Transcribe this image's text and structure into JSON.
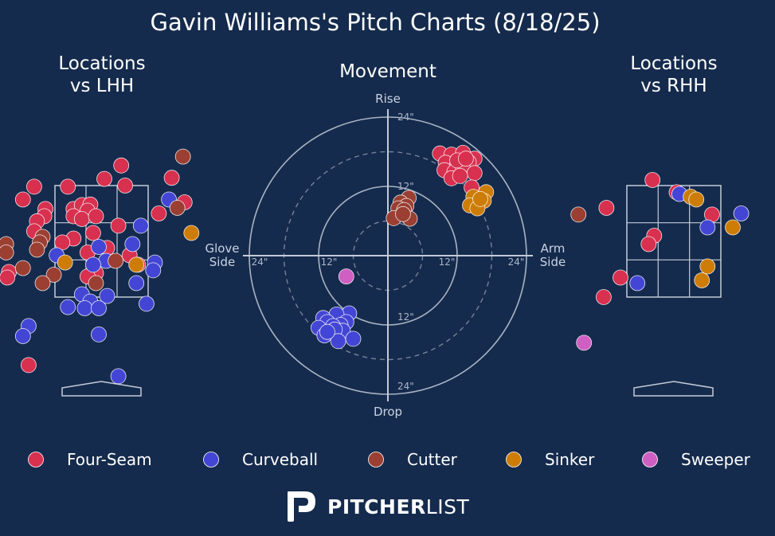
{
  "title": "Gavin Williams's Pitch Charts (8/18/25)",
  "colors": {
    "background": "#152b4d",
    "Four-Seam": "#d8304f",
    "Curveball": "#4346d4",
    "Cutter": "#9b3f33",
    "Sinker": "#cd7d06",
    "Sweeper": "#cf5fc2",
    "grid": "#c3cbd8"
  },
  "brand": {
    "name_bold": "PITCHER",
    "name_light": "LIST",
    "logo_icon": "pitcherlist-p-logo-icon"
  },
  "legend": [
    "Four-Seam",
    "Curveball",
    "Cutter",
    "Sinker",
    "Sweeper"
  ],
  "chart_data": [
    {
      "id": "lhh",
      "type": "scatter",
      "title": "Locations\nvs LHH",
      "x_unit": "plate_x_ft",
      "y_unit": "plate_z_ft",
      "strike_zone": {
        "x": [
          -0.83,
          0.83
        ],
        "z": [
          1.5,
          3.5
        ]
      },
      "points": [
        {
          "pitch": "Four-Seam",
          "x": -1.2,
          "z": 3.48
        },
        {
          "pitch": "Four-Seam",
          "x": -0.6,
          "z": 3.48
        },
        {
          "pitch": "Four-Seam",
          "x": -1.4,
          "z": 3.25
        },
        {
          "pitch": "Four-Seam",
          "x": -1.0,
          "z": 3.08
        },
        {
          "pitch": "Four-Seam",
          "x": -1.02,
          "z": 2.95
        },
        {
          "pitch": "Four-Seam",
          "x": -1.15,
          "z": 2.86
        },
        {
          "pitch": "Four-Seam",
          "x": -1.2,
          "z": 2.68
        },
        {
          "pitch": "Four-Seam",
          "x": -0.5,
          "z": 3.08
        },
        {
          "pitch": "Four-Seam",
          "x": -0.35,
          "z": 3.15
        },
        {
          "pitch": "Four-Seam",
          "x": -0.2,
          "z": 3.16
        },
        {
          "pitch": "Four-Seam",
          "x": -0.25,
          "z": 3.05
        },
        {
          "pitch": "Four-Seam",
          "x": -0.5,
          "z": 2.95
        },
        {
          "pitch": "Four-Seam",
          "x": -0.35,
          "z": 2.9
        },
        {
          "pitch": "Four-Seam",
          "x": -0.1,
          "z": 2.95
        },
        {
          "pitch": "Four-Seam",
          "x": 0.05,
          "z": 3.62
        },
        {
          "pitch": "Four-Seam",
          "x": 0.42,
          "z": 3.5
        },
        {
          "pitch": "Four-Seam",
          "x": 0.35,
          "z": 3.86
        },
        {
          "pitch": "Four-Seam",
          "x": 0.3,
          "z": 2.78
        },
        {
          "pitch": "Four-Seam",
          "x": -0.15,
          "z": 2.65
        },
        {
          "pitch": "Four-Seam",
          "x": -0.25,
          "z": 2.3
        },
        {
          "pitch": "Four-Seam",
          "x": 0.1,
          "z": 2.38
        },
        {
          "pitch": "Four-Seam",
          "x": 0.5,
          "z": 2.25
        },
        {
          "pitch": "Four-Seam",
          "x": 0.65,
          "z": 2.08
        },
        {
          "pitch": "Four-Seam",
          "x": -0.5,
          "z": 2.55
        },
        {
          "pitch": "Four-Seam",
          "x": -0.7,
          "z": 2.48
        },
        {
          "pitch": "Four-Seam",
          "x": -0.1,
          "z": 1.93
        },
        {
          "pitch": "Four-Seam",
          "x": -0.25,
          "z": 1.87
        },
        {
          "pitch": "Four-Seam",
          "x": 1.02,
          "z": 3.0
        },
        {
          "pitch": "Four-Seam",
          "x": 1.25,
          "z": 3.64
        },
        {
          "pitch": "Four-Seam",
          "x": 1.48,
          "z": 3.2
        },
        {
          "pitch": "Four-Seam",
          "x": -1.65,
          "z": 1.95
        },
        {
          "pitch": "Four-Seam",
          "x": -1.68,
          "z": 1.85
        },
        {
          "pitch": "Four-Seam",
          "x": -1.3,
          "z": 0.28
        },
        {
          "pitch": "Curveball",
          "x": -0.8,
          "z": 2.25
        },
        {
          "pitch": "Curveball",
          "x": -0.05,
          "z": 2.4
        },
        {
          "pitch": "Curveball",
          "x": 0.55,
          "z": 2.45
        },
        {
          "pitch": "Curveball",
          "x": 0.7,
          "z": 2.78
        },
        {
          "pitch": "Curveball",
          "x": 0.95,
          "z": 2.12
        },
        {
          "pitch": "Curveball",
          "x": 0.92,
          "z": 1.98
        },
        {
          "pitch": "Curveball",
          "x": 0.62,
          "z": 1.75
        },
        {
          "pitch": "Curveball",
          "x": 0.08,
          "z": 2.15
        },
        {
          "pitch": "Curveball",
          "x": -0.15,
          "z": 2.08
        },
        {
          "pitch": "Curveball",
          "x": 0.8,
          "z": 1.38
        },
        {
          "pitch": "Curveball",
          "x": 1.2,
          "z": 3.25
        },
        {
          "pitch": "Curveball",
          "x": -0.35,
          "z": 1.55
        },
        {
          "pitch": "Curveball",
          "x": -0.2,
          "z": 1.42
        },
        {
          "pitch": "Curveball",
          "x": 0.1,
          "z": 1.52
        },
        {
          "pitch": "Curveball",
          "x": -0.3,
          "z": 1.3
        },
        {
          "pitch": "Curveball",
          "x": -0.05,
          "z": 1.3
        },
        {
          "pitch": "Curveball",
          "x": -0.6,
          "z": 1.32
        },
        {
          "pitch": "Curveball",
          "x": -1.3,
          "z": 0.98
        },
        {
          "pitch": "Curveball",
          "x": -1.4,
          "z": 0.8
        },
        {
          "pitch": "Curveball",
          "x": -0.05,
          "z": 0.83
        },
        {
          "pitch": "Curveball",
          "x": 0.3,
          "z": 0.08
        },
        {
          "pitch": "Cutter",
          "x": 1.45,
          "z": 4.02
        },
        {
          "pitch": "Cutter",
          "x": 1.35,
          "z": 3.1
        },
        {
          "pitch": "Cutter",
          "x": -1.7,
          "z": 2.45
        },
        {
          "pitch": "Cutter",
          "x": -1.7,
          "z": 2.3
        },
        {
          "pitch": "Cutter",
          "x": -1.05,
          "z": 2.58
        },
        {
          "pitch": "Cutter",
          "x": -1.1,
          "z": 2.48
        },
        {
          "pitch": "Cutter",
          "x": -1.15,
          "z": 2.35
        },
        {
          "pitch": "Cutter",
          "x": 0.25,
          "z": 2.15
        },
        {
          "pitch": "Cutter",
          "x": -1.4,
          "z": 2.02
        },
        {
          "pitch": "Cutter",
          "x": -0.85,
          "z": 1.9
        },
        {
          "pitch": "Cutter",
          "x": -1.05,
          "z": 1.75
        },
        {
          "pitch": "Cutter",
          "x": -0.1,
          "z": 1.75
        },
        {
          "pitch": "Sinker",
          "x": -0.65,
          "z": 2.12
        },
        {
          "pitch": "Sinker",
          "x": 0.62,
          "z": 2.08
        },
        {
          "pitch": "Sinker",
          "x": 1.6,
          "z": 2.65
        }
      ]
    },
    {
      "id": "movement",
      "type": "scatter",
      "title": "Movement",
      "x_unit": "horizontal_break_in",
      "y_unit": "induced_vertical_break_in",
      "ring_labels": [
        "12\"",
        "24\"",
        "12\"",
        "24\"",
        "12\"",
        "24\"",
        "12\"",
        "24\""
      ],
      "top_label": "Rise",
      "bottom_label": "Drop",
      "left_label": "Glove\nSide",
      "right_label": "Arm\nSide",
      "points": [
        {
          "pitch": "Four-Seam",
          "x": 9,
          "y": 17.7
        },
        {
          "pitch": "Four-Seam",
          "x": 11,
          "y": 17.5
        },
        {
          "pitch": "Four-Seam",
          "x": 13,
          "y": 17.8
        },
        {
          "pitch": "Four-Seam",
          "x": 15,
          "y": 16.8
        },
        {
          "pitch": "Four-Seam",
          "x": 10,
          "y": 16.1
        },
        {
          "pitch": "Four-Seam",
          "x": 12,
          "y": 15.8
        },
        {
          "pitch": "Four-Seam",
          "x": 14,
          "y": 16.2
        },
        {
          "pitch": "Four-Seam",
          "x": 9.8,
          "y": 14.8
        },
        {
          "pitch": "Four-Seam",
          "x": 11.5,
          "y": 14.5
        },
        {
          "pitch": "Four-Seam",
          "x": 13,
          "y": 15
        },
        {
          "pitch": "Four-Seam",
          "x": 15,
          "y": 14.3
        },
        {
          "pitch": "Four-Seam",
          "x": 11,
          "y": 13.4
        },
        {
          "pitch": "Four-Seam",
          "x": 12.5,
          "y": 13.8
        },
        {
          "pitch": "Four-Seam",
          "x": 14.5,
          "y": 11.8
        },
        {
          "pitch": "Four-Seam",
          "x": 12,
          "y": 16.5
        },
        {
          "pitch": "Four-Seam",
          "x": 13.5,
          "y": 16.8
        },
        {
          "pitch": "Sinker",
          "x": 17,
          "y": 11
        },
        {
          "pitch": "Sinker",
          "x": 14.8,
          "y": 10.2
        },
        {
          "pitch": "Sinker",
          "x": 16.6,
          "y": 9.5
        },
        {
          "pitch": "Sinker",
          "x": 14.2,
          "y": 8.7
        },
        {
          "pitch": "Sinker",
          "x": 15.5,
          "y": 8.2
        },
        {
          "pitch": "Sinker",
          "x": 16,
          "y": 9.8
        },
        {
          "pitch": "Cutter",
          "x": 3.6,
          "y": 10
        },
        {
          "pitch": "Cutter",
          "x": 2.2,
          "y": 9.2
        },
        {
          "pitch": "Cutter",
          "x": 3.2,
          "y": 8.6
        },
        {
          "pitch": "Cutter",
          "x": 1.8,
          "y": 8.2
        },
        {
          "pitch": "Cutter",
          "x": 2.8,
          "y": 7.9
        },
        {
          "pitch": "Cutter",
          "x": 1,
          "y": 6.5
        },
        {
          "pitch": "Cutter",
          "x": 3.8,
          "y": 6.4
        },
        {
          "pitch": "Cutter",
          "x": 2.6,
          "y": 7.2
        },
        {
          "pitch": "Sweeper",
          "x": -7.2,
          "y": -3.6
        },
        {
          "pitch": "Curveball",
          "x": -6.7,
          "y": -10
        },
        {
          "pitch": "Curveball",
          "x": -8.9,
          "y": -10.2
        },
        {
          "pitch": "Curveball",
          "x": -11.2,
          "y": -10.8
        },
        {
          "pitch": "Curveball",
          "x": -10.5,
          "y": -11.5
        },
        {
          "pitch": "Curveball",
          "x": -7.2,
          "y": -11.5
        },
        {
          "pitch": "Curveball",
          "x": -8.2,
          "y": -12
        },
        {
          "pitch": "Curveball",
          "x": -9.5,
          "y": -12.2
        },
        {
          "pitch": "Curveball",
          "x": -12,
          "y": -12.5
        },
        {
          "pitch": "Curveball",
          "x": -7.8,
          "y": -13
        },
        {
          "pitch": "Curveball",
          "x": -9.2,
          "y": -12.8
        },
        {
          "pitch": "Curveball",
          "x": -11,
          "y": -13.8
        },
        {
          "pitch": "Curveball",
          "x": -8.6,
          "y": -14.8
        },
        {
          "pitch": "Curveball",
          "x": -6,
          "y": -14.4
        },
        {
          "pitch": "Curveball",
          "x": -10.5,
          "y": -13.2
        }
      ]
    },
    {
      "id": "rhh",
      "type": "scatter",
      "title": "Locations\nvs RHH",
      "x_unit": "plate_x_ft",
      "y_unit": "plate_z_ft",
      "strike_zone": {
        "x": [
          -0.83,
          0.83
        ],
        "z": [
          1.5,
          3.5
        ]
      },
      "points": [
        {
          "pitch": "Four-Seam",
          "x": -0.38,
          "z": 3.6
        },
        {
          "pitch": "Four-Seam",
          "x": 0.05,
          "z": 3.38
        },
        {
          "pitch": "Four-Seam",
          "x": -1.2,
          "z": 3.1
        },
        {
          "pitch": "Four-Seam",
          "x": 0.68,
          "z": 2.98
        },
        {
          "pitch": "Four-Seam",
          "x": -0.35,
          "z": 2.6
        },
        {
          "pitch": "Four-Seam",
          "x": -0.45,
          "z": 2.45
        },
        {
          "pitch": "Four-Seam",
          "x": -0.95,
          "z": 1.85
        },
        {
          "pitch": "Four-Seam",
          "x": -1.25,
          "z": 1.5
        },
        {
          "pitch": "Curveball",
          "x": 0.1,
          "z": 3.35
        },
        {
          "pitch": "Curveball",
          "x": 0.6,
          "z": 2.75
        },
        {
          "pitch": "Curveball",
          "x": 1.2,
          "z": 3.0
        },
        {
          "pitch": "Curveball",
          "x": -0.65,
          "z": 1.75
        },
        {
          "pitch": "Cutter",
          "x": -1.7,
          "z": 2.98
        },
        {
          "pitch": "Sinker",
          "x": 0.3,
          "z": 3.3
        },
        {
          "pitch": "Sinker",
          "x": 0.4,
          "z": 3.25
        },
        {
          "pitch": "Sinker",
          "x": 1.05,
          "z": 2.75
        },
        {
          "pitch": "Sinker",
          "x": 0.6,
          "z": 2.05
        },
        {
          "pitch": "Sinker",
          "x": 0.5,
          "z": 1.8
        },
        {
          "pitch": "Sweeper",
          "x": -1.6,
          "z": 0.68
        }
      ]
    }
  ]
}
